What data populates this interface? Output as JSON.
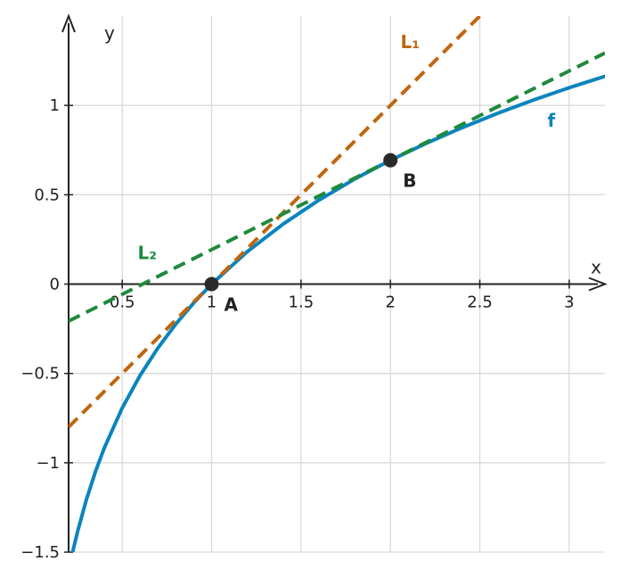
{
  "chart_data": {
    "type": "line",
    "title": "",
    "xlabel": "x",
    "ylabel": "y",
    "xlim": [
      0.2,
      3.2
    ],
    "ylim": [
      -1.5,
      1.5
    ],
    "grid": true,
    "x_ticks": [
      0.5,
      1,
      1.5,
      2,
      2.5,
      3
    ],
    "x_tick_labels": [
      "0.5",
      "1",
      "1.5",
      "2",
      "2.5",
      "3"
    ],
    "y_ticks": [
      -1.5,
      -1,
      -0.5,
      0,
      0.5,
      1
    ],
    "y_tick_labels": [
      "−1.5",
      "−1",
      "−0.5",
      "0",
      "0.5",
      "1"
    ],
    "series": [
      {
        "name": "f",
        "style": "solid",
        "color": "#0a84bd",
        "points": [
          [
            0.22,
            -1.51
          ],
          [
            0.25,
            -1.386
          ],
          [
            0.3,
            -1.204
          ],
          [
            0.35,
            -1.05
          ],
          [
            0.4,
            -0.916
          ],
          [
            0.5,
            -0.693
          ],
          [
            0.6,
            -0.511
          ],
          [
            0.7,
            -0.357
          ],
          [
            0.8,
            -0.223
          ],
          [
            0.9,
            -0.105
          ],
          [
            1.0,
            0.0
          ],
          [
            1.2,
            0.182
          ],
          [
            1.4,
            0.336
          ],
          [
            1.6,
            0.47
          ],
          [
            1.8,
            0.588
          ],
          [
            2.0,
            0.693
          ],
          [
            2.2,
            0.788
          ],
          [
            2.4,
            0.875
          ],
          [
            2.6,
            0.956
          ],
          [
            2.8,
            1.03
          ],
          [
            3.0,
            1.099
          ],
          [
            3.2,
            1.163
          ]
        ]
      },
      {
        "name": "L₁",
        "style": "dashed",
        "color": "#c0660f",
        "points": [
          [
            0.2,
            -0.8
          ],
          [
            2.5,
            1.5
          ]
        ]
      },
      {
        "name": "L₂",
        "style": "dashed",
        "color": "#1e8a3c",
        "points": [
          [
            0.2,
            -0.207
          ],
          [
            3.2,
            1.293
          ]
        ]
      }
    ],
    "points": [
      {
        "label": "A",
        "x": 1,
        "y": 0
      },
      {
        "label": "B",
        "x": 2,
        "y": 0.693
      }
    ]
  }
}
